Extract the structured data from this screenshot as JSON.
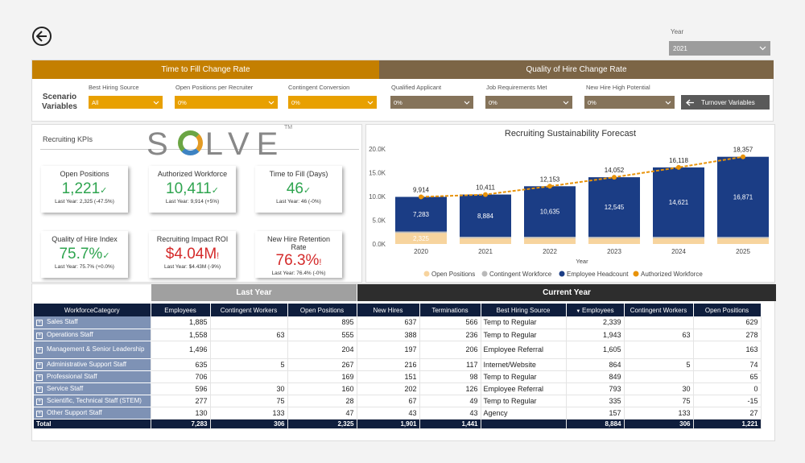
{
  "header": {
    "year_label": "Year",
    "year_value": "2021"
  },
  "scenario": {
    "label": "Scenario Variables",
    "band1": "Time to Fill Change Rate",
    "band2": "Quality of Hire Change Rate",
    "variables": [
      {
        "label": "Best Hiring Source",
        "value": "All"
      },
      {
        "label": "Open Positions per Recruiter",
        "value": "0%"
      },
      {
        "label": "Contingent Conversion",
        "value": "0%"
      },
      {
        "label": "Qualified Applicant",
        "value": "0%"
      },
      {
        "label": "Job Requirements Met",
        "value": "0%"
      },
      {
        "label": "New Hire High Potential",
        "value": "0%"
      }
    ],
    "turnover_button": "Turnover Variables"
  },
  "kpis": {
    "title": "Recruiting KPIs",
    "logo": {
      "pre": "S",
      "post": "LVE",
      "tm": "TM"
    },
    "cards": [
      {
        "title": "Open Positions",
        "value": "1,221",
        "mark": "✓",
        "sub": "Last Year: 2,325 (-47.5%)"
      },
      {
        "title": "Authorized Workforce",
        "value": "10,411",
        "mark": "✓",
        "sub": "Last Year: 9,914 (+5%)"
      },
      {
        "title": "Time to Fill (Days)",
        "value": "46",
        "mark": "✓",
        "sub": "Last Year: 46 (-0%)"
      },
      {
        "title": "Quality of Hire Index",
        "value": "75.7%",
        "mark": "✓",
        "sub": "Last Year: 75.7% (+0.0%)"
      },
      {
        "title": "Recruiting Impact ROI",
        "value": "$4.04M",
        "mark": "!",
        "sub": "Last Year: $4.43M (-9%)"
      },
      {
        "title": "New Hire Retention Rate",
        "value": "76.3%",
        "mark": "!",
        "sub": "Last Year: 76.4% (-0%)"
      }
    ]
  },
  "chart_data": {
    "type": "bar",
    "title": "Recruiting Sustainability Forecast",
    "xlabel": "Year",
    "categories": [
      "2020",
      "2021",
      "2022",
      "2023",
      "2024",
      "2025"
    ],
    "ylim": [
      0,
      20000
    ],
    "yticks": [
      "0.0K",
      "5.0K",
      "10.0K",
      "15.0K",
      "20.0K"
    ],
    "series": [
      {
        "name": "Open Positions",
        "color": "#f7d49e",
        "values": [
          2325,
          1221,
          1220,
          1220,
          1220,
          1220
        ],
        "labels": [
          "2,325",
          "",
          "",
          "",
          "",
          ""
        ]
      },
      {
        "name": "Contingent Workforce",
        "color": "#b9b9b9",
        "values": [
          306,
          306,
          298,
          287,
          277,
          266
        ],
        "labels": [
          "",
          "",
          "",
          "",
          "",
          ""
        ]
      },
      {
        "name": "Employee Headcount",
        "color": "#1b3d85",
        "values": [
          7283,
          8884,
          10635,
          12545,
          14621,
          16871
        ],
        "labels": [
          "7,283",
          "8,884",
          "10,635",
          "12,545",
          "14,621",
          "16,871"
        ]
      }
    ],
    "line": {
      "name": "Authorized Workforce",
      "color": "#e8930a",
      "values": [
        9914,
        10411,
        12153,
        14052,
        16118,
        18357
      ],
      "labels": [
        "9,914",
        "10,411",
        "12,153",
        "14,052",
        "16,118",
        "18,357"
      ]
    }
  },
  "table": {
    "band_last": "Last Year",
    "band_current": "Current Year",
    "columns": [
      "WorkforceCategory",
      "Employees",
      "Contingent Workers",
      "Open Positions",
      "New Hires",
      "Terminations",
      "Best Hiring Source",
      "Employees",
      "Contingent Workers",
      "Open Positions"
    ],
    "sort_icon": "▼",
    "expand_icon": "+",
    "rows": [
      [
        "Sales Staff",
        "1,885",
        "",
        "895",
        "637",
        "566",
        "Temp to Regular",
        "2,339",
        "",
        "629"
      ],
      [
        "Operations Staff",
        "1,558",
        "63",
        "555",
        "388",
        "236",
        "Temp to Regular",
        "1,943",
        "63",
        "278"
      ],
      [
        "Management & Senior Leadership",
        "1,496",
        "",
        "204",
        "197",
        "206",
        "Employee Referral",
        "1,605",
        "",
        "163"
      ],
      [
        "Administrative Support Staff",
        "635",
        "5",
        "267",
        "216",
        "117",
        "Internet/Website",
        "864",
        "5",
        "74"
      ],
      [
        "Professional Staff",
        "706",
        "",
        "169",
        "151",
        "98",
        "Temp to Regular",
        "849",
        "",
        "65"
      ],
      [
        "Service Staff",
        "596",
        "30",
        "160",
        "202",
        "126",
        "Employee Referral",
        "793",
        "30",
        "0"
      ],
      [
        "Scientific, Technical Staff (STEM)",
        "277",
        "75",
        "28",
        "67",
        "49",
        "Temp to Regular",
        "335",
        "75",
        "-15"
      ],
      [
        "Other Support Staff",
        "130",
        "133",
        "47",
        "43",
        "43",
        "Agency",
        "157",
        "133",
        "27"
      ]
    ],
    "total": [
      "Total",
      "7,283",
      "306",
      "2,325",
      "1,901",
      "1,441",
      "",
      "8,884",
      "306",
      "1,221"
    ]
  }
}
